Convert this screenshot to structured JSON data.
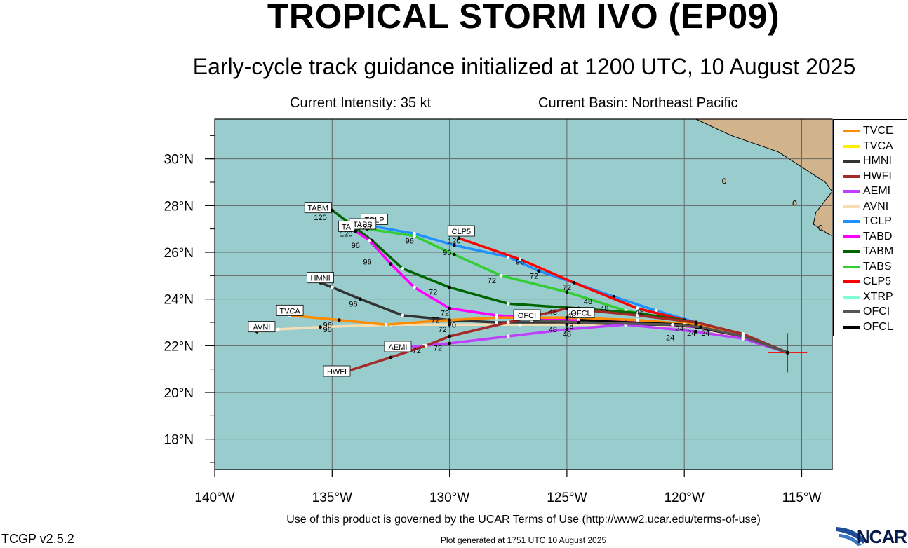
{
  "title": "TROPICAL STORM IVO (EP09)",
  "subtitle": "Early-cycle track guidance initialized at 1200 UTC, 10 August 2025",
  "current_intensity": "Current Intensity: 35 kt",
  "current_basin": "Current Basin: Northeast Pacific",
  "terms_text": "Use of this product is governed by the UCAR Terms of Use (http://www2.ucar.edu/terms-of-use)",
  "generated_text": "Plot generated at 1751 UTC   10 August 2025",
  "version": "TCGP v2.5.2",
  "logo_text": "NCAR",
  "colors": {
    "ocean": "#99cccc",
    "land": "#d2b48c",
    "grid": "#666666"
  },
  "axes": {
    "lon_range": [
      -140,
      -113.7
    ],
    "lat_range": [
      16.7,
      31.7
    ],
    "lon_ticks": [
      {
        "v": -140,
        "label": "140°W"
      },
      {
        "v": -135,
        "label": "135°W"
      },
      {
        "v": -130,
        "label": "130°W"
      },
      {
        "v": -125,
        "label": "125°W"
      },
      {
        "v": -120,
        "label": "120°W"
      },
      {
        "v": -115,
        "label": "115°W"
      }
    ],
    "lat_ticks": [
      {
        "v": 18,
        "label": "18°N"
      },
      {
        "v": 20,
        "label": "20°N"
      },
      {
        "v": 22,
        "label": "22°N"
      },
      {
        "v": 24,
        "label": "24°N"
      },
      {
        "v": 26,
        "label": "26°N"
      },
      {
        "v": 28,
        "label": "28°N"
      },
      {
        "v": 30,
        "label": "30°N"
      }
    ]
  },
  "storm_position": {
    "lon": -115.6,
    "lat": 21.7
  },
  "legend": [
    {
      "name": "TVCE",
      "color": "#ff8c00"
    },
    {
      "name": "TVCA",
      "color": "#ffee00"
    },
    {
      "name": "HMNI",
      "color": "#333333"
    },
    {
      "name": "HWFI",
      "color": "#a52a2a"
    },
    {
      "name": "AEMI",
      "color": "#bf3eff"
    },
    {
      "name": "AVNI",
      "color": "#f5deb3"
    },
    {
      "name": "TCLP",
      "color": "#1e90ff"
    },
    {
      "name": "TABD",
      "color": "#ff00ff"
    },
    {
      "name": "TABM",
      "color": "#006400"
    },
    {
      "name": "TABS",
      "color": "#32cd32"
    },
    {
      "name": "CLP5",
      "color": "#ff0000"
    },
    {
      "name": "XTRP",
      "color": "#7fffd4"
    },
    {
      "name": "OFCI",
      "color": "#555555"
    },
    {
      "name": "OFCL",
      "color": "#000000"
    }
  ],
  "tracks": [
    {
      "name": "AVNI",
      "color": "#f5deb3",
      "points": [
        [
          -115.6,
          21.7
        ],
        [
          -117.5,
          22.3
        ],
        [
          -119.5,
          22.8
        ],
        [
          -122,
          22.9
        ],
        [
          -125,
          22.9
        ],
        [
          -127,
          22.9
        ],
        [
          -130,
          22.9
        ],
        [
          -132.5,
          22.9
        ],
        [
          -135.5,
          22.8
        ],
        [
          -137.3,
          22.7
        ],
        [
          -138.2,
          22.6
        ]
      ]
    },
    {
      "name": "TCLP",
      "color": "#1e90ff",
      "points": [
        [
          -115.6,
          21.7
        ],
        [
          -117.8,
          22.5
        ],
        [
          -119.5,
          23.0
        ],
        [
          -121.2,
          23.5
        ],
        [
          -123,
          24.1
        ],
        [
          -124.7,
          24.7
        ],
        [
          -126.2,
          25.2
        ],
        [
          -127.5,
          25.8
        ],
        [
          -129.8,
          26.3
        ],
        [
          -131.5,
          26.8
        ],
        [
          -133.2,
          27.1
        ],
        [
          -134,
          27.1
        ]
      ]
    },
    {
      "name": "CLP5",
      "color": "#ff0000",
      "points": [
        [
          -115.6,
          21.7
        ],
        [
          -117.8,
          22.5
        ],
        [
          -120,
          23.1
        ],
        [
          -122,
          23.6
        ],
        [
          -124.7,
          24.7
        ],
        [
          -127,
          25.7
        ],
        [
          -129.6,
          26.6
        ]
      ]
    },
    {
      "name": "TABS",
      "color": "#32cd32",
      "points": [
        [
          -115.6,
          21.7
        ],
        [
          -117.5,
          22.5
        ],
        [
          -119.8,
          23.0
        ],
        [
          -122.5,
          23.5
        ],
        [
          -125,
          24.3
        ],
        [
          -127.8,
          25.0
        ],
        [
          -129.8,
          25.9
        ],
        [
          -131.5,
          26.7
        ],
        [
          -133.5,
          27.0
        ]
      ]
    },
    {
      "name": "TABM",
      "color": "#006400",
      "points": [
        [
          -115.6,
          21.7
        ],
        [
          -117.5,
          22.5
        ],
        [
          -119.5,
          23.0
        ],
        [
          -122,
          23.4
        ],
        [
          -124.5,
          23.6
        ],
        [
          -127.5,
          23.8
        ],
        [
          -130,
          24.5
        ],
        [
          -132,
          25.3
        ],
        [
          -133.3,
          26.5
        ],
        [
          -134.2,
          27.2
        ],
        [
          -135,
          27.8
        ]
      ]
    },
    {
      "name": "TABD",
      "color": "#ff00ff",
      "points": [
        [
          -115.6,
          21.7
        ],
        [
          -117.5,
          22.4
        ],
        [
          -119.5,
          22.8
        ],
        [
          -122,
          23.0
        ],
        [
          -125,
          23.1
        ],
        [
          -128,
          23.3
        ],
        [
          -130,
          23.6
        ],
        [
          -131.5,
          24.5
        ],
        [
          -132.5,
          25.5
        ],
        [
          -133.4,
          26.5
        ],
        [
          -134,
          26.9
        ]
      ]
    },
    {
      "name": "HMNI",
      "color": "#333333",
      "points": [
        [
          -115.6,
          21.7
        ],
        [
          -117.5,
          22.5
        ],
        [
          -119.5,
          22.9
        ],
        [
          -122,
          22.9
        ],
        [
          -125,
          23.0
        ],
        [
          -128,
          23.0
        ],
        [
          -130,
          23.1
        ],
        [
          -132,
          23.3
        ],
        [
          -133.8,
          24.0
        ],
        [
          -135,
          24.5
        ],
        [
          -135.5,
          24.7
        ]
      ]
    },
    {
      "name": "TVCE",
      "color": "#ff8c00",
      "points": [
        [
          -115.6,
          21.7
        ],
        [
          -117.5,
          22.5
        ],
        [
          -119.5,
          22.9
        ],
        [
          -122,
          23.1
        ],
        [
          -125,
          23.2
        ],
        [
          -128,
          23.2
        ],
        [
          -130,
          23.1
        ],
        [
          -132.7,
          22.9
        ],
        [
          -134.7,
          23.1
        ],
        [
          -136.8,
          23.3
        ]
      ]
    },
    {
      "name": "AEMI",
      "color": "#bf3eff",
      "points": [
        [
          -115.6,
          21.7
        ],
        [
          -117.5,
          22.3
        ],
        [
          -119.5,
          22.6
        ],
        [
          -122.5,
          22.9
        ],
        [
          -125,
          22.7
        ],
        [
          -127.5,
          22.4
        ],
        [
          -130,
          22.1
        ],
        [
          -131.1,
          22.0
        ],
        [
          -132.2,
          21.9
        ]
      ]
    },
    {
      "name": "HWFI",
      "color": "#a52a2a",
      "points": [
        [
          -115.6,
          21.7
        ],
        [
          -117.5,
          22.5
        ],
        [
          -119.5,
          23.0
        ],
        [
          -122,
          23.3
        ],
        [
          -125,
          23.6
        ],
        [
          -127.5,
          23.0
        ],
        [
          -130,
          22.4
        ],
        [
          -131,
          22.0
        ],
        [
          -132.5,
          21.5
        ],
        [
          -134.7,
          20.8
        ]
      ]
    },
    {
      "name": "OFCL",
      "color": "#000000",
      "points": [
        [
          -115.6,
          21.7
        ],
        [
          -117.5,
          22.4
        ],
        [
          -119,
          22.7
        ],
        [
          -120,
          22.9
        ],
        [
          -122.5,
          23.0
        ],
        [
          -124.5,
          23.1
        ]
      ]
    },
    {
      "name": "OFCI",
      "color": "#555555",
      "points": [
        [
          -115.6,
          21.7
        ],
        [
          -117.5,
          22.4
        ],
        [
          -119.3,
          22.8
        ],
        [
          -120.5,
          22.9
        ],
        [
          -124.5,
          23.0
        ],
        [
          -126.5,
          23.1
        ]
      ]
    }
  ],
  "box_labels": [
    {
      "text": "TABM",
      "lon": -135.6,
      "lat": 27.9
    },
    {
      "text": "TCLP",
      "lon": -133.2,
      "lat": 27.4
    },
    {
      "text": "TABS",
      "lon": -133.7,
      "lat": 27.2
    },
    {
      "text": "TA",
      "lon": -134.4,
      "lat": 27.1
    },
    {
      "text": "CLP5",
      "lon": -129.5,
      "lat": 26.9
    },
    {
      "text": "HMNI",
      "lon": -135.5,
      "lat": 24.9
    },
    {
      "text": "TVCA",
      "lon": -136.8,
      "lat": 23.5
    },
    {
      "text": "AVNI",
      "lon": -138.0,
      "lat": 22.8
    },
    {
      "text": "OFCI",
      "lon": -126.7,
      "lat": 23.3
    },
    {
      "text": "OFCL",
      "lon": -124.4,
      "lat": 23.4
    },
    {
      "text": "AEMI",
      "lon": -132.2,
      "lat": 21.95
    },
    {
      "text": "HWFI",
      "lon": -134.8,
      "lat": 20.9
    }
  ],
  "hour_labels": [
    {
      "text": "120",
      "lon": -135.5,
      "lat": 27.5
    },
    {
      "text": "120",
      "lon": -134.4,
      "lat": 26.8
    },
    {
      "text": "120",
      "lon": -133.6,
      "lat": 27.1
    },
    {
      "text": "120",
      "lon": -129.8,
      "lat": 26.5
    },
    {
      "text": "96",
      "lon": -134.0,
      "lat": 26.3
    },
    {
      "text": "96",
      "lon": -131.7,
      "lat": 26.5
    },
    {
      "text": "96",
      "lon": -130.1,
      "lat": 26.0
    },
    {
      "text": "96",
      "lon": -133.5,
      "lat": 25.6
    },
    {
      "text": "96",
      "lon": -127.0,
      "lat": 25.6
    },
    {
      "text": "96",
      "lon": -134.1,
      "lat": 23.8
    },
    {
      "text": "96",
      "lon": -135.2,
      "lat": 22.9
    },
    {
      "text": "96",
      "lon": -135.2,
      "lat": 22.7
    },
    {
      "text": "72",
      "lon": -126.4,
      "lat": 25.0
    },
    {
      "text": "72",
      "lon": -128.2,
      "lat": 24.8
    },
    {
      "text": "72",
      "lon": -125.0,
      "lat": 24.5
    },
    {
      "text": "72",
      "lon": -130.7,
      "lat": 24.3
    },
    {
      "text": "72",
      "lon": -130.2,
      "lat": 23.4
    },
    {
      "text": "72",
      "lon": -130.6,
      "lat": 23.1
    },
    {
      "text": "70",
      "lon": -129.9,
      "lat": 22.9
    },
    {
      "text": "72",
      "lon": -130.3,
      "lat": 22.7
    },
    {
      "text": "72",
      "lon": -131.4,
      "lat": 21.8
    },
    {
      "text": "72",
      "lon": -130.5,
      "lat": 21.9
    },
    {
      "text": "48",
      "lon": -124.1,
      "lat": 23.9
    },
    {
      "text": "48",
      "lon": -123.4,
      "lat": 23.6
    },
    {
      "text": "48",
      "lon": -121.9,
      "lat": 23.45
    },
    {
      "text": "48",
      "lon": -125.6,
      "lat": 23.45
    },
    {
      "text": "48",
      "lon": -124.8,
      "lat": 23.3
    },
    {
      "text": "48",
      "lon": -125.6,
      "lat": 22.7
    },
    {
      "text": "48",
      "lon": -125.0,
      "lat": 22.5
    },
    {
      "text": "48",
      "lon": -124.9,
      "lat": 22.85
    },
    {
      "text": "24",
      "lon": -120.2,
      "lat": 22.75
    },
    {
      "text": "24",
      "lon": -119.7,
      "lat": 22.55
    },
    {
      "text": "24",
      "lon": -119.1,
      "lat": 22.55
    },
    {
      "text": "24",
      "lon": -120.6,
      "lat": 22.35
    }
  ],
  "land": [
    [
      [
        -119.5,
        31.7
      ],
      [
        -118.0,
        31.0
      ],
      [
        -116.0,
        30.3
      ],
      [
        -114.0,
        29.0
      ],
      [
        -113.7,
        28.6
      ],
      [
        -113.7,
        31.7
      ]
    ],
    [
      [
        -113.7,
        28.6
      ],
      [
        -114.4,
        27.7
      ],
      [
        -114.5,
        27.2
      ],
      [
        -113.9,
        26.8
      ],
      [
        -113.7,
        26.7
      ]
    ]
  ],
  "islands": [
    {
      "lon": -118.3,
      "lat": 29.05
    },
    {
      "lon": -115.3,
      "lat": 28.1
    },
    {
      "lon": -114.2,
      "lat": 27.05
    }
  ]
}
